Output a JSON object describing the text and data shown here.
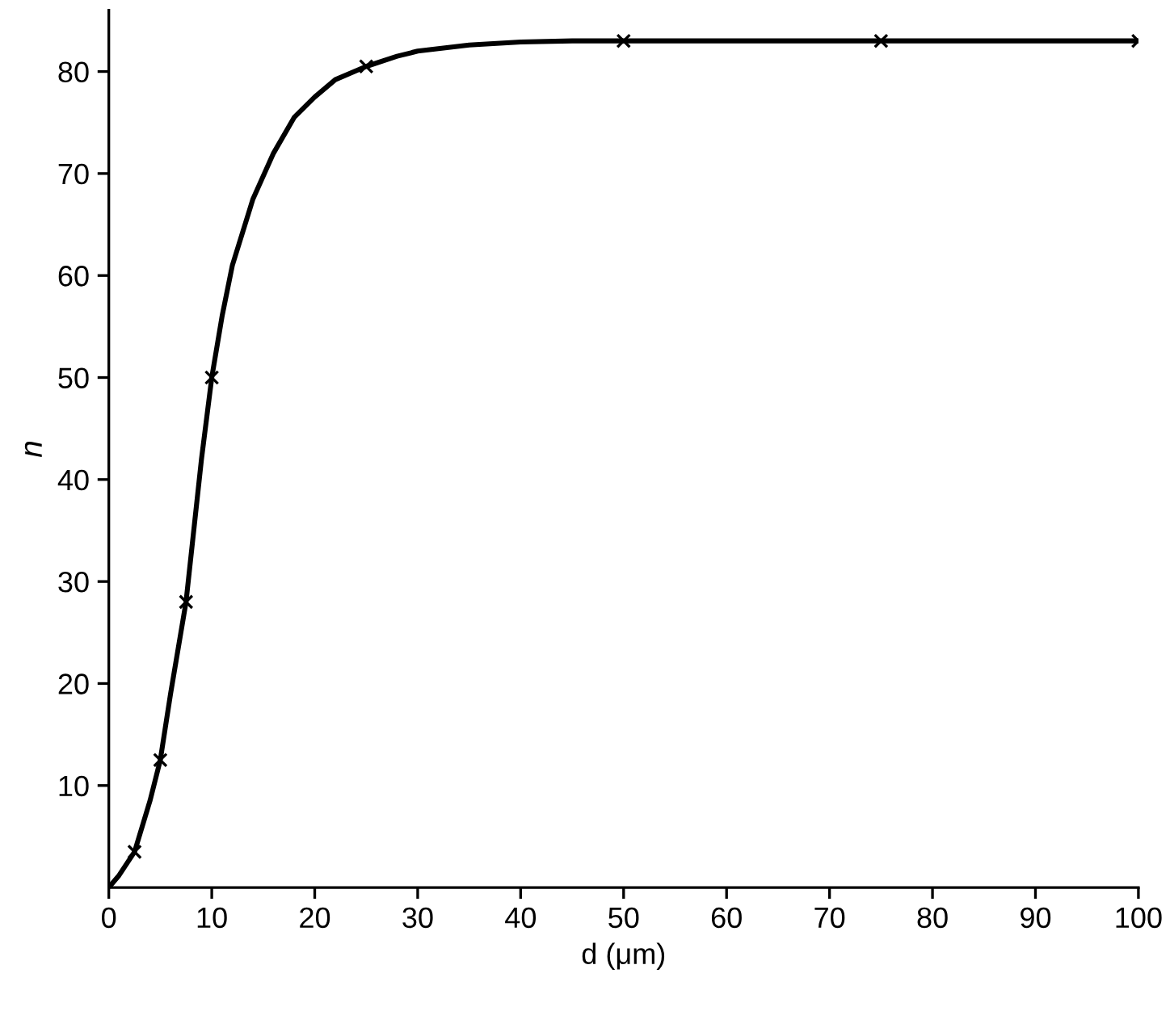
{
  "chart_data": {
    "type": "line",
    "xlabel": "d (μm)",
    "ylabel": "n",
    "series": [
      {
        "color": "#000000",
        "marker": "none",
        "line_style": "solid",
        "x": [
          0,
          1,
          2.5,
          4,
          5,
          6,
          7.5,
          9,
          10,
          11,
          12,
          14,
          16,
          18,
          20,
          22,
          25,
          28,
          30,
          35,
          40,
          45,
          50,
          60,
          75,
          90,
          100
        ],
        "values": [
          0,
          1.2,
          3.5,
          8.5,
          12.5,
          19,
          28,
          42,
          50,
          56,
          61,
          67.5,
          72,
          75.5,
          77.5,
          79.2,
          80.5,
          81.5,
          82,
          82.6,
          82.9,
          83,
          83,
          83,
          83,
          83,
          83
        ]
      },
      {
        "type": "scatter",
        "color": "#000000",
        "marker": "cross",
        "x": [
          2.5,
          5,
          7.5,
          10,
          25,
          50,
          75,
          100
        ],
        "values": [
          3.5,
          12.5,
          28,
          50,
          80.5,
          83,
          83,
          83
        ]
      }
    ],
    "xlim": [
      0,
      100
    ],
    "ylim": [
      0,
      86
    ],
    "xticks": [
      0,
      10,
      20,
      30,
      40,
      50,
      60,
      70,
      80,
      90,
      100
    ],
    "yticks": [
      10,
      20,
      30,
      40,
      50,
      60,
      70,
      80
    ],
    "grid": false,
    "legend": false
  }
}
